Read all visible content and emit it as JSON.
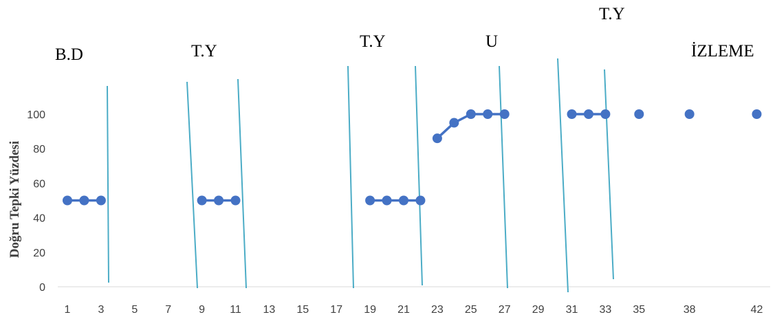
{
  "chart_data": {
    "type": "line",
    "ylabel": "Doğru Tepki Yüzdesi",
    "xlabel": "",
    "ylim": [
      0,
      100
    ],
    "yticks": [
      0,
      20,
      40,
      60,
      80,
      100
    ],
    "xticks": [
      "1",
      "3",
      "5",
      "7",
      "9",
      "11",
      "13",
      "15",
      "17",
      "19",
      "21",
      "23",
      "25",
      "27",
      "29",
      "31",
      "33",
      "35",
      "38",
      "42"
    ],
    "grid": false,
    "legend": "none",
    "colors": {
      "series": "#4472c4",
      "phase_lines": "#4bacc6"
    },
    "phase_labels": [
      "B.D",
      "T.Y",
      "T.Y",
      "U",
      "T.Y",
      "İZLEME"
    ],
    "series": [
      {
        "segments": [
          {
            "x": [
              1,
              2,
              3
            ],
            "y": [
              50,
              50,
              50
            ]
          },
          {
            "x": [
              9,
              10,
              11
            ],
            "y": [
              50,
              50,
              50
            ]
          },
          {
            "x": [
              19,
              20,
              21,
              22
            ],
            "y": [
              50,
              50,
              50,
              50
            ]
          },
          {
            "x": [
              23,
              24,
              25,
              26,
              27
            ],
            "y": [
              86,
              95,
              100,
              100,
              100
            ]
          },
          {
            "x": [
              31,
              32,
              33
            ],
            "y": [
              100,
              100,
              100
            ]
          },
          {
            "x": [
              35
            ],
            "y": [
              100
            ]
          },
          {
            "x": [
              38
            ],
            "y": [
              100
            ]
          },
          {
            "x": [
              42
            ],
            "y": [
              100
            ]
          }
        ]
      }
    ]
  }
}
